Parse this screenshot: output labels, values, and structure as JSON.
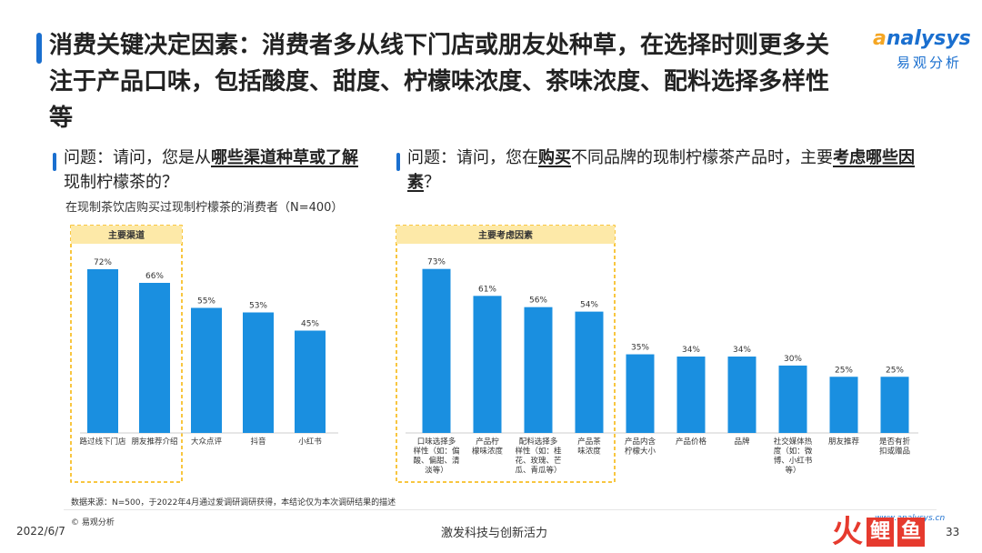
{
  "title": "消费关键决定因素：消费者多从线下门店或朋友处种草，在选择时则更多关注于产品口味，包括酸度、甜度、柠檬味浓度、茶味浓度、配料选择多样性等",
  "logo": {
    "en_o": "a",
    "en_rest": "nalysys",
    "cn": "易观分析"
  },
  "left": {
    "question_pre": "问题：请问，您是从",
    "question_hl": "哪些渠道种草或了解",
    "question_post": "现制柠檬茶的？",
    "subtitle": "在现制茶饮店购买过现制柠檬茶的消费者（N=400）",
    "highlight_label": "主要渠道"
  },
  "right": {
    "question_pre": "问题：请问，您在",
    "question_hl1": "购买",
    "question_mid": "不同品牌的现制柠檬茶产品时，主要",
    "question_hl2": "考虑哪些因素",
    "question_post": "？",
    "highlight_label": "主要考虑因素"
  },
  "chart_data": [
    {
      "type": "bar",
      "categories": [
        "路过线下门店",
        "朋友推荐介绍",
        "大众点评",
        "抖音",
        "小红书"
      ],
      "values": [
        72,
        66,
        55,
        53,
        45
      ],
      "value_labels": [
        "72%",
        "66%",
        "55%",
        "53%",
        "45%"
      ],
      "unit": "%",
      "ylim": [
        0,
        80
      ],
      "highlighted_count": 2,
      "color": "#1a8fe0"
    },
    {
      "type": "bar",
      "categories": [
        [
          "口味选择多",
          "样性（如：偏",
          "酸、偏甜、清",
          "淡等）"
        ],
        [
          "产品柠",
          "檬味浓度"
        ],
        [
          "配料选择多",
          "样性（如：桂",
          "花、玫瑰、芒",
          "瓜、青瓜等）"
        ],
        [
          "产品茶",
          "味浓度"
        ],
        [
          "产品内含",
          "柠檬大小"
        ],
        [
          "产品价格"
        ],
        [
          "品牌"
        ],
        [
          "社交媒体热",
          "度（如：微",
          "博、小红书",
          "等）"
        ],
        [
          "朋友推荐"
        ],
        [
          "是否有折",
          "扣或赠品"
        ]
      ],
      "values": [
        73,
        61,
        56,
        54,
        35,
        34,
        34,
        30,
        25,
        25
      ],
      "value_labels": [
        "73%",
        "61%",
        "56%",
        "54%",
        "35%",
        "34%",
        "34%",
        "30%",
        "25%",
        "25%"
      ],
      "unit": "%",
      "ylim": [
        0,
        80
      ],
      "highlighted_count": 4,
      "color": "#1a8fe0"
    }
  ],
  "footer": {
    "source": "数据来源：N=500，于2022年4月通过爱调研调研获得，本结论仅为本次调研结果的描述",
    "copyright": "© 易观分析",
    "date": "2022/6/7",
    "slogan": "激发科技与创新活力",
    "url": "www.analysys.cn",
    "page": "33",
    "brand2": {
      "huo": "火",
      "li": "鲤",
      "yu": "鱼"
    }
  },
  "colors": {
    "accent": "#1a6fcf",
    "bar": "#1a8fe0",
    "highlight_border": "#f5b400",
    "highlight_fill": "#fde9a8"
  }
}
